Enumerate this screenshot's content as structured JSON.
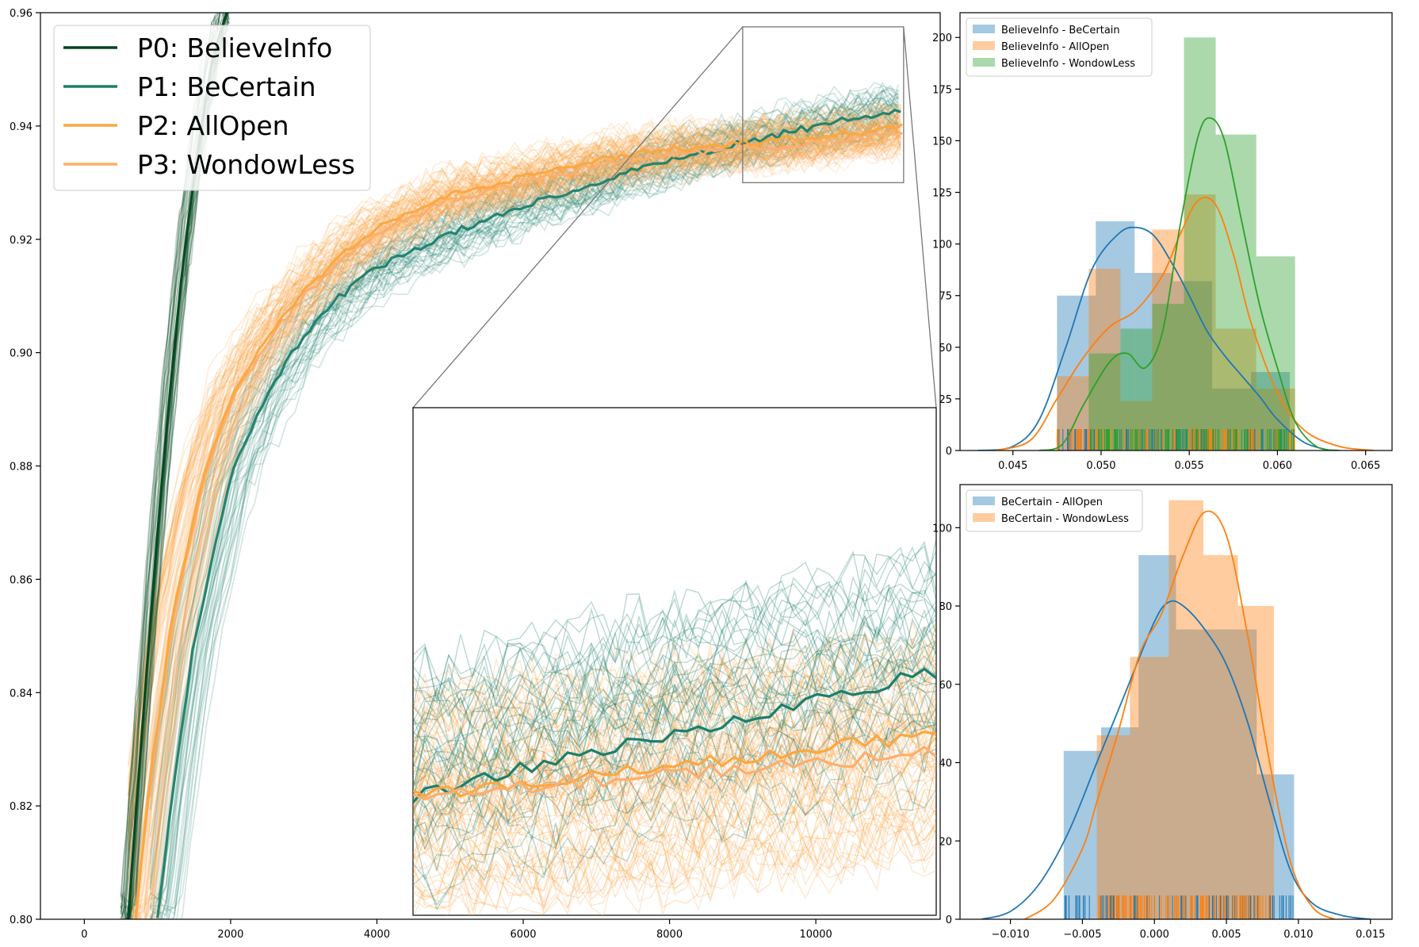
{
  "chart_data": [
    {
      "type": "line",
      "title": "",
      "xlabel": "",
      "ylabel": "",
      "xlim": [
        -600,
        11700
      ],
      "ylim": [
        0.8,
        0.96
      ],
      "x_ticks": [
        0,
        2000,
        4000,
        6000,
        8000,
        10000
      ],
      "y_ticks": [
        0.8,
        0.82,
        0.84,
        0.86,
        0.88,
        0.9,
        0.92,
        0.94,
        0.96
      ],
      "x_tick_labels": [
        "0",
        "2000",
        "4000",
        "6000",
        "8000",
        "10000"
      ],
      "y_tick_labels": [
        "0.80",
        "0.82",
        "0.84",
        "0.86",
        "0.88",
        "0.90",
        "0.92",
        "0.94",
        "0.96"
      ],
      "legend_placement": "top-left",
      "note": "Each series is drawn as ~45 faint runs plus a bold mean line",
      "series": [
        {
          "name": "P0: BelieveInfo",
          "color": "#00441b",
          "x": [
            600,
            700,
            800,
            900,
            1000,
            1100,
            1200,
            1300,
            1400,
            1500,
            1600,
            1700,
            1800,
            1900,
            2000
          ],
          "y": [
            0.8,
            0.818,
            0.835,
            0.852,
            0.868,
            0.883,
            0.897,
            0.91,
            0.921,
            0.931,
            0.94,
            0.948,
            0.954,
            0.958,
            0.962
          ]
        },
        {
          "name": "P1: BeCertain",
          "color": "#1b7f6b",
          "x": [
            1000,
            1200,
            1500,
            2000,
            2500,
            3000,
            3500,
            4000,
            5000,
            6000,
            7000,
            8000,
            9000,
            10000,
            11200
          ],
          "y": [
            0.8,
            0.822,
            0.849,
            0.878,
            0.893,
            0.903,
            0.91,
            0.915,
            0.921,
            0.926,
            0.93,
            0.934,
            0.937,
            0.94,
            0.943
          ]
        },
        {
          "name": "P2: AllOpen",
          "color": "#fca73f",
          "x": [
            700,
            900,
            1200,
            1600,
            2000,
            2500,
            3000,
            3500,
            4000,
            5000,
            6000,
            7000,
            8000,
            9000,
            10000,
            11200
          ],
          "y": [
            0.8,
            0.825,
            0.853,
            0.877,
            0.892,
            0.903,
            0.911,
            0.917,
            0.922,
            0.928,
            0.931,
            0.934,
            0.936,
            0.937,
            0.938,
            0.94
          ]
        },
        {
          "name": "P3: WondowLess",
          "color": "#fdae6b",
          "x": [
            700,
            900,
            1200,
            1600,
            2000,
            2500,
            3000,
            3500,
            4000,
            5000,
            6000,
            7000,
            8000,
            9000,
            10000,
            11200
          ],
          "y": [
            0.8,
            0.824,
            0.852,
            0.876,
            0.891,
            0.902,
            0.91,
            0.916,
            0.921,
            0.927,
            0.93,
            0.933,
            0.935,
            0.936,
            0.937,
            0.939
          ]
        }
      ],
      "inset": {
        "xlim": [
          9000,
          11200
        ],
        "ylim": [
          0.93,
          0.9575
        ],
        "bold_lines": [
          {
            "name": "P1: BeCertain",
            "start": 0.9365,
            "end": 0.9432
          },
          {
            "name": "P2: AllOpen",
            "start": 0.9365,
            "end": 0.9398
          },
          {
            "name": "P3: WondowLess",
            "start": 0.9365,
            "end": 0.9388
          }
        ]
      }
    },
    {
      "type": "bar",
      "subtype": "histogram with kde and rug",
      "xlim": [
        0.042,
        0.0665
      ],
      "ylim": [
        0,
        212
      ],
      "x_ticks": [
        0.045,
        0.05,
        0.055,
        0.06,
        0.065
      ],
      "y_ticks": [
        0,
        25,
        50,
        75,
        100,
        125,
        150,
        175,
        200
      ],
      "x_tick_labels": [
        "0.045",
        "0.050",
        "0.055",
        "0.060",
        "0.065"
      ],
      "y_tick_labels": [
        "0",
        "25",
        "50",
        "75",
        "100",
        "125",
        "150",
        "175",
        "200"
      ],
      "legend_placement": "top-left",
      "series": [
        {
          "name": "BelieveInfo - BeCertain",
          "color": "#1f77b4",
          "bin_edges": [
            0.0475,
            0.0497,
            0.0519,
            0.0541,
            0.0563,
            0.0585,
            0.0607
          ],
          "values": [
            75,
            111,
            86,
            82,
            30,
            38
          ]
        },
        {
          "name": "BelieveInfo - AllOpen",
          "color": "#ff7f0e",
          "bin_edges": [
            0.0475,
            0.0493,
            0.0511,
            0.0529,
            0.0547,
            0.0565,
            0.0588,
            0.061
          ],
          "values": [
            36,
            88,
            24,
            107,
            124,
            59,
            30
          ]
        },
        {
          "name": "BelieveInfo - WondowLess",
          "color": "#2ca02c",
          "bin_edges": [
            0.0493,
            0.0511,
            0.0529,
            0.0547,
            0.0565,
            0.0588,
            0.061
          ],
          "values": [
            47,
            59,
            71,
            200,
            153,
            94
          ]
        }
      ],
      "kde": [
        {
          "name": "BelieveInfo - BeCertain",
          "color": "#1f77b4",
          "x": [
            0.043,
            0.045,
            0.0465,
            0.048,
            0.0495,
            0.051,
            0.052,
            0.053,
            0.054,
            0.055,
            0.056,
            0.057,
            0.058,
            0.059,
            0.06,
            0.0615,
            0.063
          ],
          "y": [
            0,
            2,
            15,
            50,
            88,
            105,
            108,
            104,
            91,
            75,
            58,
            46,
            36,
            26,
            15,
            4,
            0
          ]
        },
        {
          "name": "BelieveInfo - AllOpen",
          "color": "#ff7f0e",
          "x": [
            0.044,
            0.046,
            0.0475,
            0.049,
            0.0505,
            0.052,
            0.0535,
            0.0545,
            0.0555,
            0.0565,
            0.0575,
            0.0585,
            0.06,
            0.0615,
            0.0635,
            0.0655
          ],
          "y": [
            0,
            5,
            25,
            45,
            60,
            68,
            85,
            105,
            121,
            119,
            95,
            62,
            28,
            10,
            2,
            0
          ]
        },
        {
          "name": "BelieveInfo - WondowLess",
          "color": "#2ca02c",
          "x": [
            0.0465,
            0.0478,
            0.049,
            0.0505,
            0.0515,
            0.0525,
            0.0535,
            0.0545,
            0.0555,
            0.0562,
            0.057,
            0.058,
            0.059,
            0.06,
            0.061,
            0.0622,
            0.0635
          ],
          "y": [
            0,
            3,
            22,
            43,
            47,
            40,
            58,
            110,
            152,
            161,
            150,
            110,
            70,
            40,
            14,
            2,
            0
          ]
        }
      ]
    },
    {
      "type": "bar",
      "subtype": "histogram with kde and rug",
      "xlim": [
        -0.0135,
        0.0165
      ],
      "ylim": [
        0,
        111
      ],
      "x_ticks": [
        -0.01,
        -0.005,
        0.0,
        0.005,
        0.01,
        0.015
      ],
      "y_ticks": [
        0,
        20,
        40,
        60,
        80,
        100
      ],
      "x_tick_labels": [
        "−0.010",
        "−0.005",
        "0.000",
        "0.005",
        "0.010",
        "0.015"
      ],
      "y_tick_labels": [
        "0",
        "20",
        "40",
        "60",
        "80",
        "100"
      ],
      "legend_placement": "top-left",
      "series": [
        {
          "name": "BeCertain - AllOpen",
          "color": "#1f77b4",
          "bin_edges": [
            -0.0063,
            -0.0037,
            -0.0011,
            0.0015,
            0.0041,
            0.0071,
            0.0097
          ],
          "values": [
            43,
            49,
            93,
            74,
            74,
            37
          ]
        },
        {
          "name": "BeCertain - WondowLess",
          "color": "#ff7f0e",
          "bin_edges": [
            -0.004,
            -0.0017,
            0.001,
            0.0034,
            0.0058,
            0.0083
          ],
          "values": [
            47,
            67,
            107,
            93,
            80
          ]
        }
      ],
      "kde": [
        {
          "name": "BeCertain - AllOpen",
          "color": "#1f77b4",
          "x": [
            -0.012,
            -0.01,
            -0.008,
            -0.006,
            -0.004,
            -0.002,
            0.0,
            0.001,
            0.002,
            0.0035,
            0.005,
            0.0065,
            0.008,
            0.0095,
            0.011,
            0.013,
            0.015
          ],
          "y": [
            0,
            2,
            9,
            22,
            40,
            58,
            76,
            81,
            80,
            74,
            65,
            50,
            30,
            12,
            4,
            1,
            0
          ]
        },
        {
          "name": "BeCertain - WondowLess",
          "color": "#ff7f0e",
          "x": [
            -0.009,
            -0.007,
            -0.005,
            -0.004,
            -0.0025,
            -0.001,
            0.0005,
            0.002,
            0.0035,
            0.005,
            0.0065,
            0.008,
            0.0095,
            0.011,
            0.0125
          ],
          "y": [
            0,
            5,
            18,
            30,
            48,
            68,
            78,
            93,
            104,
            98,
            72,
            40,
            14,
            3,
            0
          ]
        }
      ]
    }
  ]
}
